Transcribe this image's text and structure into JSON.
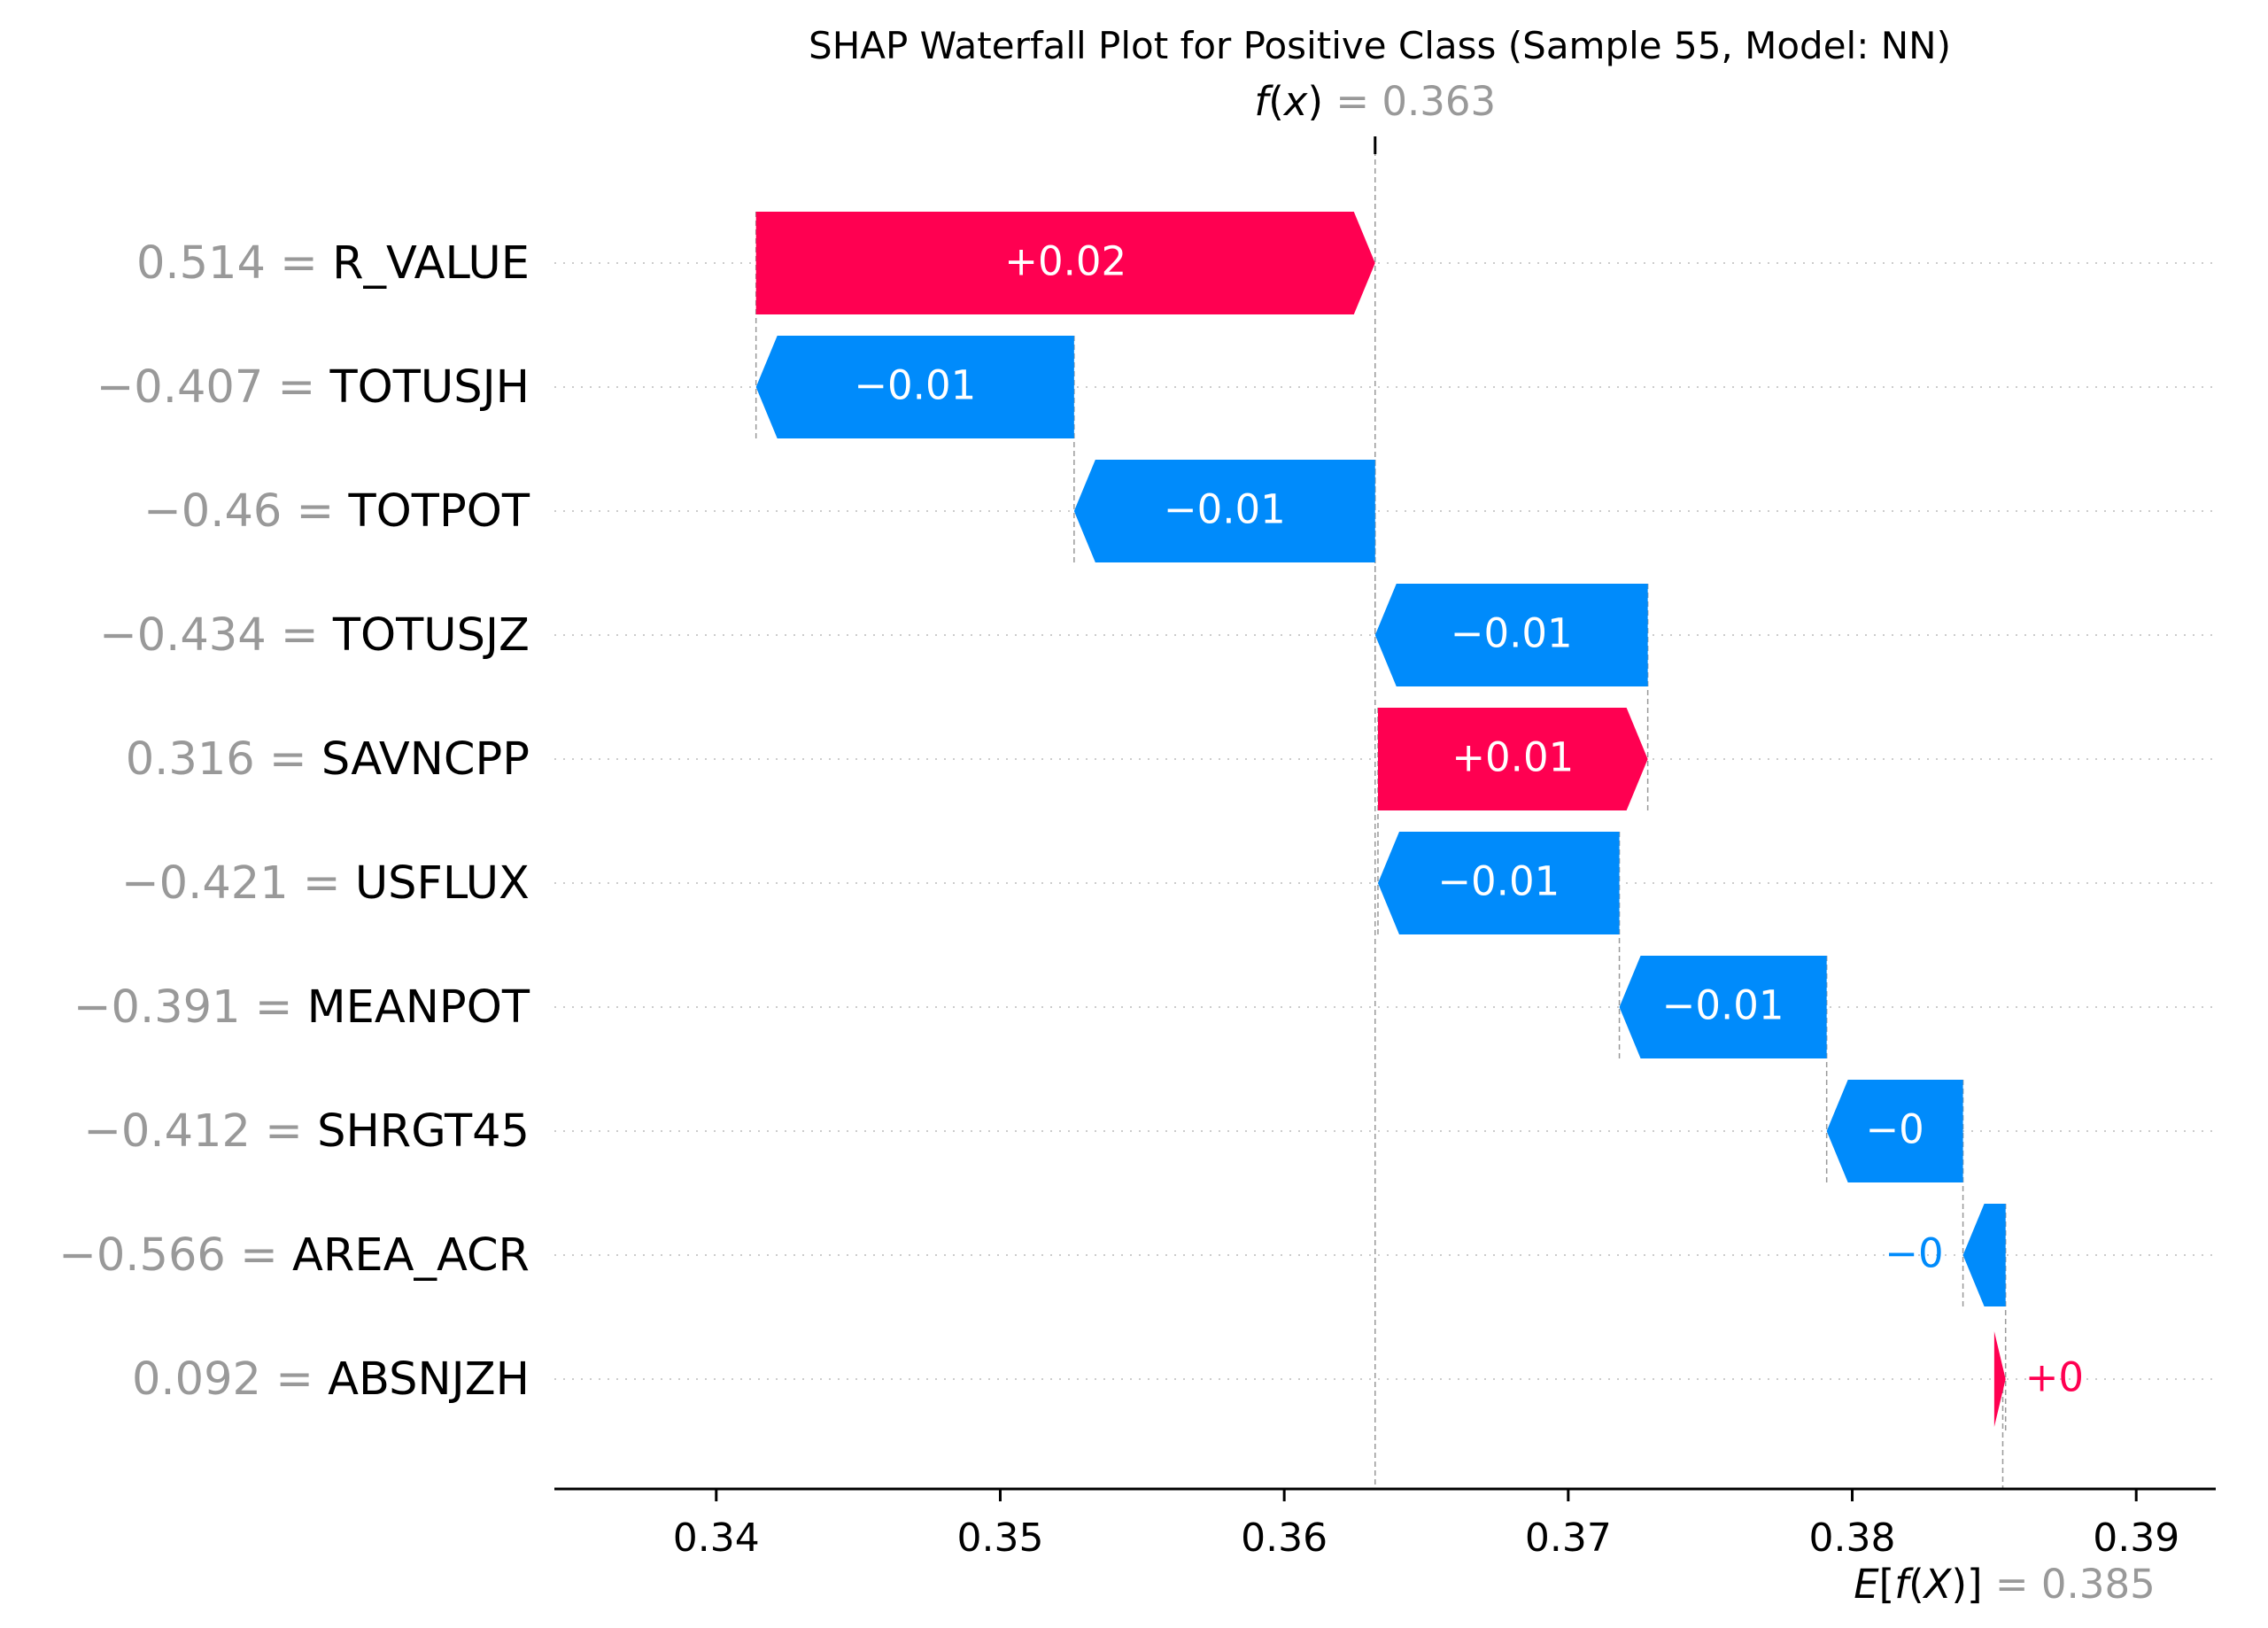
{
  "chart_data": {
    "type": "waterfall",
    "title": "SHAP Waterfall Plot for Positive Class (Sample 55, Model: NN)",
    "fx": {
      "label_func": "f",
      "label_arg": "x",
      "value_text": "= 0.363",
      "value": 0.3632
    },
    "efx": {
      "label_e": "E",
      "label_func": "f",
      "label_arg": "X",
      "value_text": "= 0.385",
      "value": 0.3853
    },
    "xlim": [
      0.3343,
      0.3928
    ],
    "x_ticks": [
      {
        "value": 0.34,
        "label": "0.34"
      },
      {
        "value": 0.35,
        "label": "0.35"
      },
      {
        "value": 0.36,
        "label": "0.36"
      },
      {
        "value": 0.37,
        "label": "0.37"
      },
      {
        "value": 0.38,
        "label": "0.38"
      },
      {
        "value": 0.39,
        "label": "0.39"
      }
    ],
    "colors": {
      "positive": "#ff0051",
      "negative": "#008bfb",
      "axis": "#000000",
      "muted": "#999999",
      "grid": "#cccccc"
    },
    "features": [
      {
        "value_text": "0.514 =",
        "name": "R_VALUE",
        "start": 0.3414,
        "end": 0.3632,
        "label": "+0.02"
      },
      {
        "value_text": "−0.407 =",
        "name": "TOTUSJH",
        "start": 0.3526,
        "end": 0.3414,
        "label": "−0.01"
      },
      {
        "value_text": "−0.46 =",
        "name": "TOTPOT",
        "start": 0.3632,
        "end": 0.3526,
        "label": "−0.01"
      },
      {
        "value_text": "−0.434 =",
        "name": "TOTUSJZ",
        "start": 0.3728,
        "end": 0.3632,
        "label": "−0.01"
      },
      {
        "value_text": "0.316 =",
        "name": "SAVNCPP",
        "start": 0.3633,
        "end": 0.3728,
        "label": "+0.01"
      },
      {
        "value_text": "−0.421 =",
        "name": "USFLUX",
        "start": 0.3718,
        "end": 0.3633,
        "label": "−0.01"
      },
      {
        "value_text": "−0.391 =",
        "name": "MEANPOT",
        "start": 0.3791,
        "end": 0.3718,
        "label": "−0.01"
      },
      {
        "value_text": "−0.412 =",
        "name": "SHRGT45",
        "start": 0.3839,
        "end": 0.3791,
        "label": "−0"
      },
      {
        "value_text": "−0.566 =",
        "name": "AREA_ACR",
        "start": 0.3854,
        "end": 0.3839,
        "label": "−0"
      },
      {
        "value_text": "0.092 =",
        "name": "ABSNJZH",
        "start": 0.385,
        "end": 0.3854,
        "label": "+0"
      }
    ]
  }
}
